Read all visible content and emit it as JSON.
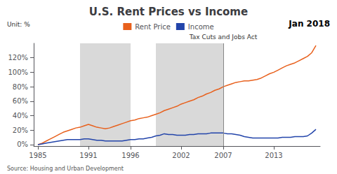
{
  "chart_data": {
    "type": "line",
    "title": "U.S. Rent Prices vs Income",
    "annotations": [
      "Unit: %",
      "Jan 2018"
    ],
    "source": "Source: Housing and Urban Development",
    "x": [
      1985,
      1985.5,
      1986,
      1986.5,
      1987,
      1987.5,
      1988,
      1988.5,
      1989,
      1989.5,
      1990,
      1990.5,
      1991,
      1991.5,
      1992,
      1992.5,
      1993,
      1993.5,
      1994,
      1994.5,
      1995,
      1995.5,
      1996,
      1996.5,
      1997,
      1997.5,
      1998,
      1998.5,
      1999,
      1999.5,
      2000,
      2000.5,
      2001,
      2001.5,
      2002,
      2002.5,
      2003,
      2003.5,
      2004,
      2004.5,
      2005,
      2005.5,
      2006,
      2006.5,
      2007,
      2007.5,
      2008,
      2008.5,
      2009,
      2009.5,
      2010,
      2010.5,
      2011,
      2011.5,
      2012,
      2012.5,
      2013,
      2013.5,
      2014,
      2014.5,
      2015,
      2015.5,
      2016,
      2016.5,
      2017,
      2017.5,
      2018
    ],
    "series": [
      {
        "name": "Rent Price",
        "color": "#E8601C",
        "values": [
          0,
          2,
          5,
          8,
          11,
          14,
          17,
          19,
          21,
          23,
          24,
          26,
          28,
          26,
          24,
          23,
          22,
          23,
          25,
          27,
          29,
          31,
          33,
          34,
          36,
          37,
          38,
          40,
          42,
          44,
          47,
          49,
          51,
          53,
          56,
          58,
          60,
          62,
          65,
          67,
          70,
          72,
          75,
          77,
          80,
          82,
          84,
          86,
          87,
          88,
          88,
          89,
          90,
          92,
          95,
          98,
          100,
          103,
          106,
          109,
          111,
          113,
          116,
          119,
          122,
          127,
          137
        ]
      },
      {
        "name": "Income",
        "color": "#2244AA",
        "values": [
          0,
          1,
          2,
          3,
          4,
          5,
          6,
          7,
          7,
          7,
          7,
          8,
          8,
          7,
          6,
          6,
          5,
          5,
          5,
          5,
          5,
          6,
          7,
          7,
          8,
          8,
          9,
          10,
          12,
          13,
          15,
          14,
          14,
          13,
          13,
          13,
          14,
          14,
          15,
          15,
          15,
          16,
          16,
          16,
          16,
          15,
          15,
          14,
          13,
          11,
          10,
          9,
          9,
          9,
          9,
          9,
          9,
          9,
          10,
          10,
          10,
          11,
          11,
          11,
          12,
          16,
          21
        ]
      }
    ],
    "shaded_ranges": [
      {
        "from": 1990,
        "to": 1996,
        "color": "#aaaaaa"
      },
      {
        "from": 1999,
        "to": 2007,
        "color": "#aaaaaa"
      }
    ],
    "vlines": [
      {
        "x": 2007,
        "label": "Tax Cuts and Jobs Act",
        "color": "#888888"
      }
    ],
    "xlim": [
      1984.5,
      2018.5
    ],
    "xticks": [
      1985,
      1991,
      1996,
      2002,
      2007,
      2013
    ],
    "ylim": [
      -2,
      140
    ],
    "yticks": [
      {
        "value": 0,
        "label": "0%"
      },
      {
        "value": 20,
        "label": "20%"
      },
      {
        "value": 40,
        "label": "40%"
      },
      {
        "value": 60,
        "label": "60%"
      },
      {
        "value": 80,
        "label": "80%"
      },
      {
        "value": 100,
        "label": "100%"
      },
      {
        "value": 120,
        "label": "120%"
      }
    ],
    "grid": false,
    "legend": "top"
  }
}
